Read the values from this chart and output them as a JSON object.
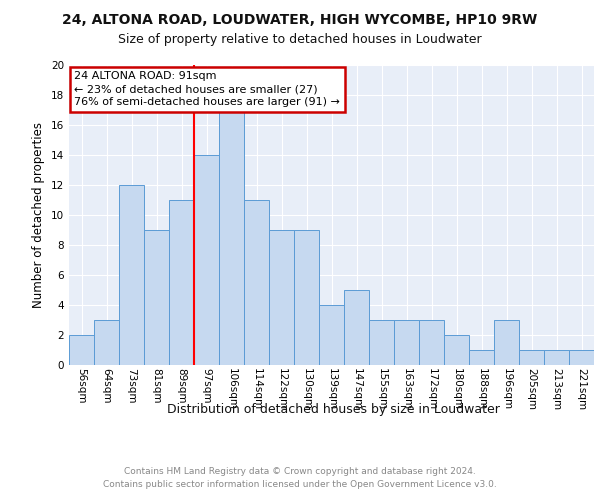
{
  "title1": "24, ALTONA ROAD, LOUDWATER, HIGH WYCOMBE, HP10 9RW",
  "title2": "Size of property relative to detached houses in Loudwater",
  "xlabel": "Distribution of detached houses by size in Loudwater",
  "ylabel": "Number of detached properties",
  "bar_labels": [
    "56sqm",
    "64sqm",
    "73sqm",
    "81sqm",
    "89sqm",
    "97sqm",
    "106sqm",
    "114sqm",
    "122sqm",
    "130sqm",
    "139sqm",
    "147sqm",
    "155sqm",
    "163sqm",
    "172sqm",
    "180sqm",
    "188sqm",
    "196sqm",
    "205sqm",
    "213sqm",
    "221sqm"
  ],
  "bar_heights": [
    2,
    3,
    12,
    9,
    11,
    14,
    17,
    11,
    9,
    9,
    4,
    5,
    3,
    3,
    3,
    2,
    1,
    3,
    1,
    1,
    1
  ],
  "bar_color": "#c6d9f0",
  "bar_edge_color": "#5b9bd5",
  "red_line_x": 4.5,
  "annotation_title": "24 ALTONA ROAD: 91sqm",
  "annotation_line1": "← 23% of detached houses are smaller (27)",
  "annotation_line2": "76% of semi-detached houses are larger (91) →",
  "annotation_box_color": "#ffffff",
  "annotation_border_color": "#cc0000",
  "footer_line1": "Contains HM Land Registry data © Crown copyright and database right 2024.",
  "footer_line2": "Contains public sector information licensed under the Open Government Licence v3.0.",
  "ylim": [
    0,
    20
  ],
  "yticks": [
    0,
    2,
    4,
    6,
    8,
    10,
    12,
    14,
    16,
    18,
    20
  ],
  "bg_color": "#e8eef8",
  "fig_bg_color": "#ffffff",
  "grid_color": "#ffffff",
  "title1_fontsize": 10,
  "title2_fontsize": 9,
  "ylabel_fontsize": 8.5,
  "xlabel_fontsize": 9,
  "tick_fontsize": 7.5,
  "ann_fontsize": 8,
  "footer_fontsize": 6.5
}
